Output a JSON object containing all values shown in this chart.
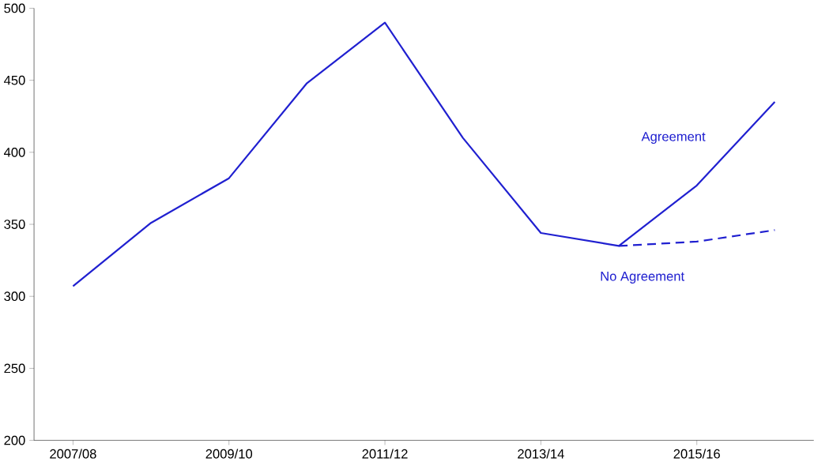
{
  "chart_data": {
    "type": "line",
    "categories": [
      "2007/08",
      null,
      "2009/10",
      null,
      "2011/12",
      null,
      "2013/14",
      null,
      "2015/16",
      null
    ],
    "series": [
      {
        "name": "Agreement",
        "color": "#2020d0",
        "line_style": "solid",
        "values": [
          307,
          351,
          382,
          448,
          490,
          410,
          344,
          335,
          377,
          435
        ]
      },
      {
        "name": "No Agreement",
        "color": "#2020d0",
        "line_style": "dashed",
        "values": [
          null,
          null,
          null,
          null,
          null,
          null,
          null,
          335,
          338,
          346
        ]
      }
    ],
    "ylim": [
      200,
      500
    ],
    "yticks": [
      200,
      250,
      300,
      350,
      400,
      450,
      500
    ],
    "grid": false,
    "marker": "none"
  }
}
